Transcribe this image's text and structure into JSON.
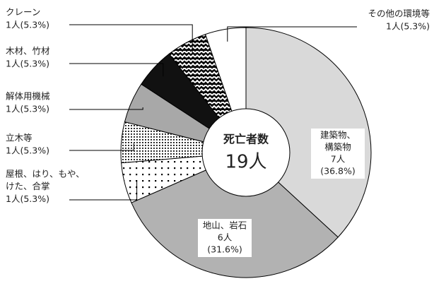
{
  "chart_data": {
    "type": "donut",
    "center_title": "死亡者数",
    "center_value": "19人",
    "categories": [
      [
        "建築物、",
        "構築物"
      ],
      [
        "地山、岩石"
      ],
      [
        "屋根、はり、もや、",
        "けた、合掌"
      ],
      [
        "立木等"
      ],
      [
        "解体用機械"
      ],
      [
        "木材、竹材"
      ],
      [
        "クレーン"
      ],
      [
        "その他の環境等"
      ]
    ],
    "values": [
      7,
      6,
      1,
      1,
      1,
      1,
      1,
      1
    ],
    "value_labels": [
      "7人",
      "6人",
      "1人",
      "1人",
      "1人",
      "1人",
      "1人",
      "1人"
    ],
    "percentages": [
      36.8,
      31.6,
      5.3,
      5.3,
      5.3,
      5.3,
      5.3,
      5.3
    ],
    "percent_labels": [
      "(36.8%)",
      "(31.6%)",
      "(5.3%)",
      "(5.3%)",
      "(5.3%)",
      "(5.3%)",
      "(5.3%)",
      "(5.3%)"
    ],
    "colors": [
      "#d9d9d9",
      "#b2b2b2",
      "url(#dots-sparse)",
      "url(#dots-dense)",
      "#a8a8a8",
      "#111111",
      "url(#weave)",
      "#ffffff"
    ]
  }
}
